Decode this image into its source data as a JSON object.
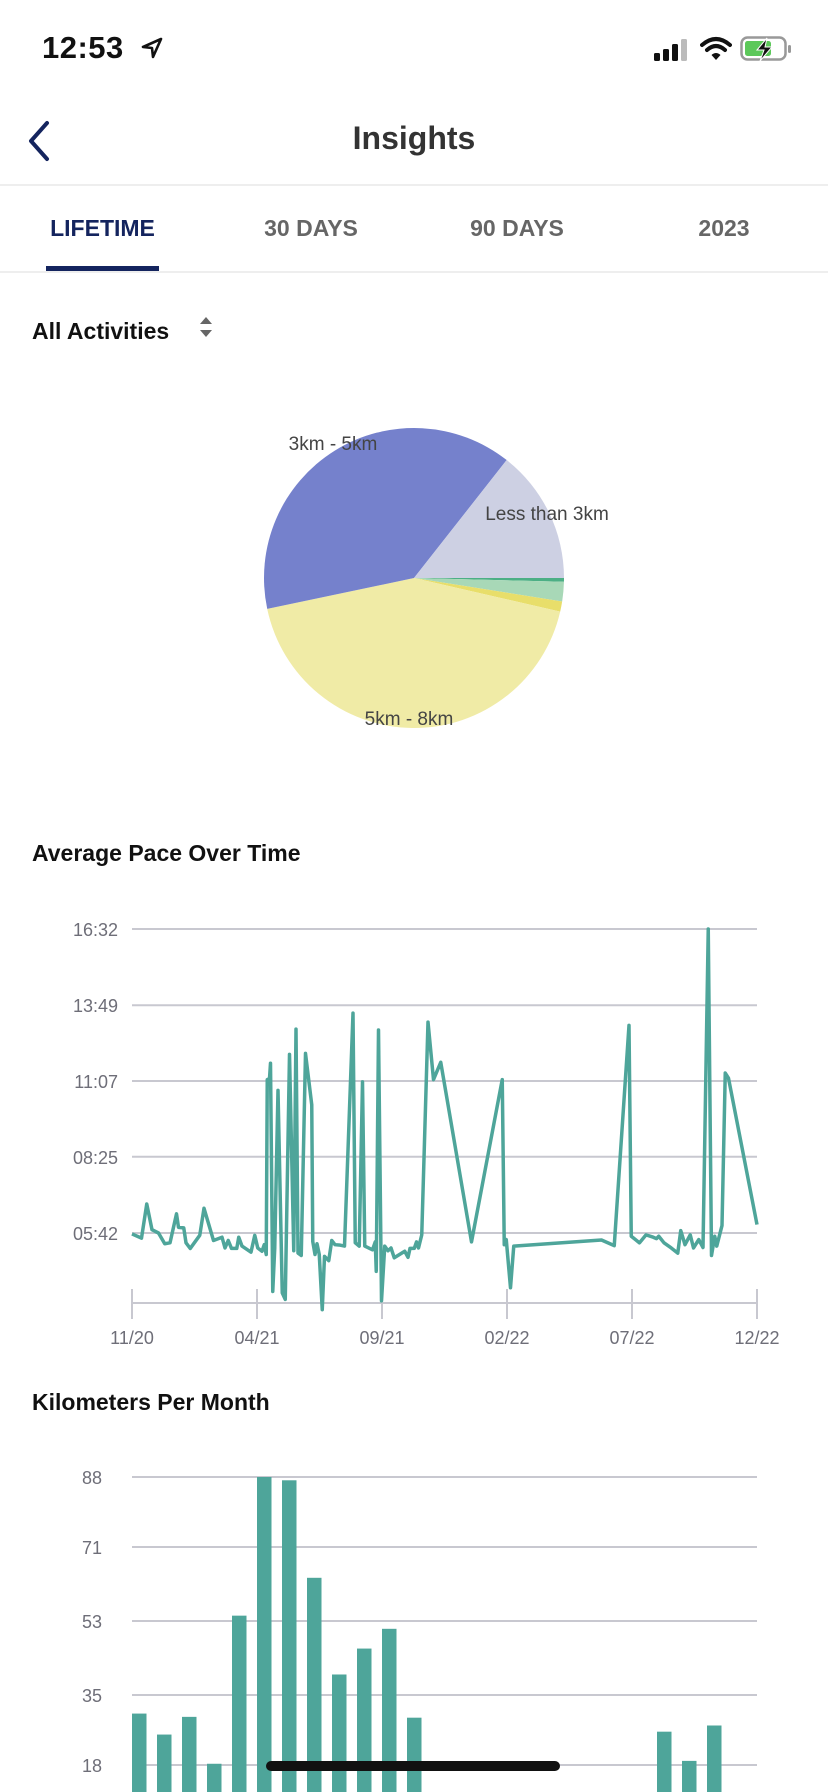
{
  "status_bar": {
    "time": "12:53",
    "icons": [
      "location-arrow-icon",
      "signal-icon",
      "wifi-icon",
      "battery-charging-icon"
    ]
  },
  "nav": {
    "title": "Insights",
    "back_icon": "chevron-left-icon"
  },
  "tabs": [
    {
      "label": "LIFETIME",
      "active": true
    },
    {
      "label": "30 DAYS",
      "active": false
    },
    {
      "label": "90 DAYS",
      "active": false
    },
    {
      "label": "2023",
      "active": false
    }
  ],
  "filter": {
    "selected": "All Activities",
    "icon": "sort-arrows-icon"
  },
  "colors": {
    "accent": "#14245e",
    "series": "#4ea59a",
    "grid": "#c8c8d0"
  },
  "chart_data": [
    {
      "type": "pie",
      "title": "",
      "slices": [
        {
          "label": "Less than 3km",
          "value": 14.4,
          "color": "#cdd0e3",
          "show_label": true
        },
        {
          "label": "3km - 5km",
          "value": 38.9,
          "color": "#7581cc",
          "show_label": true
        },
        {
          "label": "5km - 8km",
          "value": 43.1,
          "color": "#f0eba6",
          "show_label": true
        },
        {
          "label": "",
          "value": 1.1,
          "color": "#e8de6a",
          "show_label": false
        },
        {
          "label": "",
          "value": 2.1,
          "color": "#a8d8b7",
          "show_label": false
        },
        {
          "label": "",
          "value": 0.4,
          "color": "#4caf85",
          "show_label": false
        }
      ]
    },
    {
      "type": "line",
      "title": "Average Pace Over Time",
      "xlabel": "",
      "ylabel": "",
      "x_unit": "months since 11/20",
      "y_unit": "seconds per km",
      "xlim": [
        0,
        25
      ],
      "ylim": [
        192,
        992
      ],
      "x_ticks": [
        {
          "v": 0,
          "label": "11/20"
        },
        {
          "v": 5,
          "label": "04/21"
        },
        {
          "v": 10,
          "label": "09/21"
        },
        {
          "v": 15,
          "label": "02/22"
        },
        {
          "v": 20,
          "label": "07/22"
        },
        {
          "v": 25,
          "label": "12/22"
        }
      ],
      "y_ticks": [
        {
          "v": 992,
          "label": "16:32"
        },
        {
          "v": 829,
          "label": "13:49"
        },
        {
          "v": 667,
          "label": "11:07"
        },
        {
          "v": 505,
          "label": "08:25"
        },
        {
          "v": 342,
          "label": "05:42"
        }
      ],
      "points": [
        [
          0,
          340
        ],
        [
          0.38,
          331
        ],
        [
          0.59,
          404
        ],
        [
          0.8,
          349
        ],
        [
          1.06,
          342
        ],
        [
          1.31,
          319
        ],
        [
          1.52,
          321
        ],
        [
          1.78,
          383
        ],
        [
          1.86,
          354
        ],
        [
          2.07,
          353
        ],
        [
          2.16,
          321
        ],
        [
          2.33,
          309
        ],
        [
          2.71,
          337
        ],
        [
          2.88,
          395
        ],
        [
          3.26,
          326
        ],
        [
          3.6,
          333
        ],
        [
          3.72,
          310
        ],
        [
          3.85,
          326
        ],
        [
          3.98,
          309
        ],
        [
          4.19,
          309
        ],
        [
          4.27,
          333
        ],
        [
          4.4,
          314
        ],
        [
          4.76,
          301
        ],
        [
          4.91,
          337
        ],
        [
          5.03,
          310
        ],
        [
          5.2,
          303
        ],
        [
          5.29,
          317
        ],
        [
          5.37,
          296
        ],
        [
          5.41,
          670
        ],
        [
          5.5,
          672
        ],
        [
          5.54,
          705
        ],
        [
          5.63,
          217
        ],
        [
          5.71,
          310
        ],
        [
          5.84,
          647
        ],
        [
          6.01,
          214
        ],
        [
          6.13,
          200
        ],
        [
          6.3,
          724
        ],
        [
          6.47,
          304
        ],
        [
          6.56,
          778
        ],
        [
          6.64,
          299
        ],
        [
          6.77,
          294
        ],
        [
          6.94,
          726
        ],
        [
          7.19,
          616
        ],
        [
          7.23,
          324
        ],
        [
          7.32,
          296
        ],
        [
          7.4,
          319
        ],
        [
          7.49,
          296
        ],
        [
          7.61,
          178
        ],
        [
          7.7,
          292
        ],
        [
          7.87,
          283
        ],
        [
          7.99,
          326
        ],
        [
          8.12,
          317
        ],
        [
          8.33,
          316
        ],
        [
          8.5,
          314
        ],
        [
          8.84,
          812
        ],
        [
          8.93,
          321
        ],
        [
          9.09,
          314
        ],
        [
          9.22,
          665
        ],
        [
          9.31,
          314
        ],
        [
          9.62,
          306
        ],
        [
          9.73,
          323
        ],
        [
          9.77,
          260
        ],
        [
          9.86,
          776
        ],
        [
          9.98,
          197
        ],
        [
          10.11,
          314
        ],
        [
          10.24,
          304
        ],
        [
          10.36,
          310
        ],
        [
          10.49,
          289
        ],
        [
          10.91,
          303
        ],
        [
          11.04,
          290
        ],
        [
          11.12,
          309
        ],
        [
          11.29,
          309
        ],
        [
          11.38,
          323
        ],
        [
          11.46,
          310
        ],
        [
          11.59,
          338
        ],
        [
          11.84,
          793
        ],
        [
          12.06,
          670
        ],
        [
          12.35,
          707
        ],
        [
          13.58,
          323
        ],
        [
          14.81,
          670
        ],
        [
          14.89,
          317
        ],
        [
          14.97,
          328
        ],
        [
          15.14,
          225
        ],
        [
          15.27,
          314
        ],
        [
          18.78,
          327
        ],
        [
          19.29,
          315
        ],
        [
          19.88,
          786
        ],
        [
          19.97,
          335
        ],
        [
          20.3,
          321
        ],
        [
          20.56,
          338
        ],
        [
          20.85,
          333
        ],
        [
          20.98,
          330
        ],
        [
          21.07,
          335
        ],
        [
          21.28,
          321
        ],
        [
          21.57,
          310
        ],
        [
          21.83,
          299
        ],
        [
          21.95,
          347
        ],
        [
          22.12,
          317
        ],
        [
          22.33,
          338
        ],
        [
          22.46,
          310
        ],
        [
          22.67,
          328
        ],
        [
          22.84,
          311
        ],
        [
          23.05,
          992
        ],
        [
          23.18,
          294
        ],
        [
          23.31,
          335
        ],
        [
          23.39,
          314
        ],
        [
          23.6,
          358
        ],
        [
          23.73,
          684
        ],
        [
          23.86,
          673
        ],
        [
          25,
          360
        ]
      ]
    },
    {
      "type": "bar",
      "title": "Kilometers Per Month",
      "xlabel": "",
      "ylabel": "",
      "y_ticks": [
        88,
        71,
        53,
        35,
        18
      ],
      "values": [
        30.5,
        25.4,
        29.7,
        18.3,
        54.3,
        88,
        87.2,
        63.5,
        40,
        46.3,
        51.1,
        29.5,
        0,
        0,
        0,
        0,
        0,
        0,
        0,
        0,
        0,
        26.1,
        19,
        27.6,
        0
      ]
    }
  ]
}
